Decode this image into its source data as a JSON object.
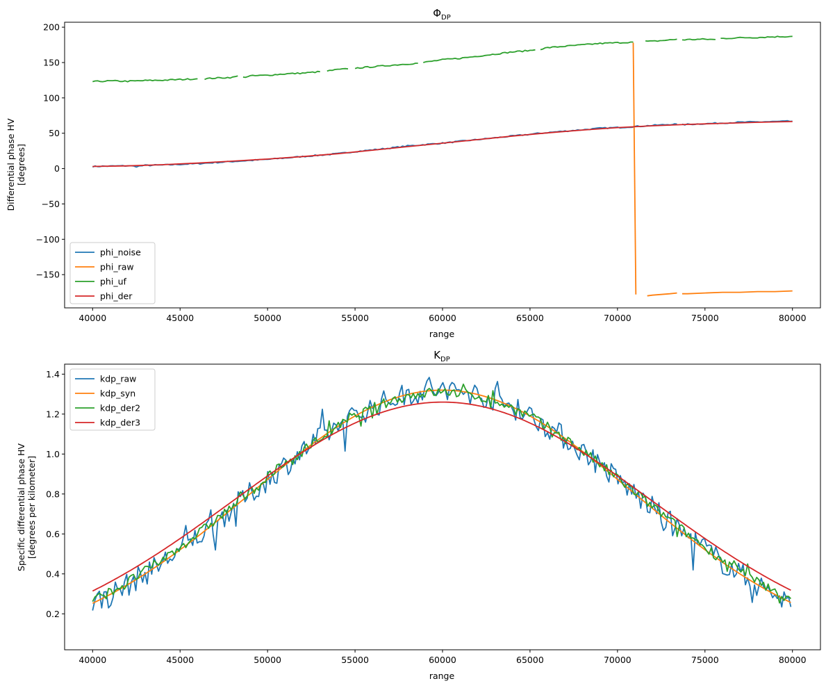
{
  "chart_data": [
    {
      "type": "line",
      "title": "Φ",
      "title_subscript": "DP",
      "xlabel": "range",
      "ylabel": [
        "Differential phase HV",
        "[degrees]"
      ],
      "xlim": [
        38400,
        81600
      ],
      "ylim": [
        -197,
        207
      ],
      "xticks": [
        40000,
        45000,
        50000,
        55000,
        60000,
        65000,
        70000,
        75000,
        80000
      ],
      "yticks": [
        -150,
        -100,
        -50,
        0,
        50,
        100,
        150,
        200
      ],
      "legend_position": "lower-left",
      "grid": false,
      "series": [
        {
          "name": "phi_noise",
          "color": "#1f77b4",
          "points": [
            [
              40000,
              3
            ],
            [
              41000,
              3.5
            ],
            [
              42000,
              4
            ],
            [
              42500,
              3
            ],
            [
              43000,
              4.5
            ],
            [
              44000,
              5
            ],
            [
              45000,
              6
            ],
            [
              46000,
              7
            ],
            [
              47000,
              8.5
            ],
            [
              48000,
              10
            ],
            [
              49000,
              11.5
            ],
            [
              50000,
              13
            ],
            [
              51000,
              15
            ],
            [
              52000,
              17
            ],
            [
              53000,
              19
            ],
            [
              54000,
              21
            ],
            [
              55000,
              24
            ],
            [
              56000,
              26.5
            ],
            [
              57000,
              29
            ],
            [
              58000,
              32
            ],
            [
              59000,
              34
            ],
            [
              60000,
              36
            ],
            [
              61000,
              38.5
            ],
            [
              62000,
              41
            ],
            [
              63000,
              43.5
            ],
            [
              64000,
              46
            ],
            [
              65000,
              48.5
            ],
            [
              66000,
              51
            ],
            [
              67000,
              53
            ],
            [
              68000,
              55
            ],
            [
              69000,
              57
            ],
            [
              70000,
              58
            ],
            [
              71000,
              59.5
            ],
            [
              72000,
              61
            ],
            [
              73000,
              62.5
            ],
            [
              73400,
              63
            ]
          ],
          "points_b": [
            [
              73700,
              62
            ],
            [
              74000,
              62.5
            ],
            [
              75000,
              63.5
            ],
            [
              76000,
              64.5
            ],
            [
              77000,
              65.5
            ],
            [
              78000,
              66
            ],
            [
              79000,
              66.5
            ],
            [
              80000,
              67
            ]
          ]
        },
        {
          "name": "phi_raw",
          "color": "#ff7f0e",
          "points": [
            [
              70900,
              178
            ],
            [
              71050,
              -178
            ]
          ],
          "points_b": [
            [
              71700,
              -180
            ],
            [
              72000,
              -179
            ],
            [
              73000,
              -177
            ],
            [
              73400,
              -176
            ]
          ],
          "points_c": [
            [
              73700,
              -177
            ],
            [
              74000,
              -177
            ],
            [
              75000,
              -176
            ],
            [
              76000,
              -175
            ],
            [
              77000,
              -175
            ],
            [
              78000,
              -174
            ],
            [
              79000,
              -174
            ],
            [
              80000,
              -173
            ]
          ]
        },
        {
          "name": "phi_uf",
          "color": "#2ca02c",
          "segments": [
            [
              [
                40000,
                123
              ],
              [
                41000,
                124
              ],
              [
                42000,
                123.5
              ],
              [
                43000,
                124.5
              ],
              [
                44000,
                125
              ],
              [
                45000,
                126
              ],
              [
                46000,
                127
              ]
            ],
            [
              [
                46400,
                127
              ],
              [
                47000,
                128
              ],
              [
                48000,
                129
              ],
              [
                48300,
                131
              ]
            ],
            [
              [
                48600,
                129
              ],
              [
                49000,
                131
              ],
              [
                50000,
                132
              ],
              [
                51000,
                134
              ],
              [
                52000,
                135
              ],
              [
                53000,
                137
              ]
            ],
            [
              [
                53400,
                138
              ],
              [
                54000,
                140
              ],
              [
                54600,
                141
              ]
            ],
            [
              [
                55000,
                142
              ],
              [
                56000,
                144
              ],
              [
                57000,
                146
              ],
              [
                58000,
                148
              ],
              [
                58600,
                149
              ]
            ],
            [
              [
                58900,
                150
              ],
              [
                60000,
                154
              ],
              [
                61000,
                156
              ],
              [
                62000,
                159
              ],
              [
                63000,
                162
              ],
              [
                64000,
                165
              ],
              [
                65000,
                167
              ],
              [
                65300,
                168
              ]
            ],
            [
              [
                65600,
                169
              ],
              [
                66000,
                171
              ],
              [
                67000,
                173
              ],
              [
                68000,
                175
              ],
              [
                69000,
                177
              ],
              [
                70000,
                178
              ],
              [
                70900,
                179
              ]
            ],
            [
              [
                71600,
                180
              ],
              [
                72000,
                180
              ],
              [
                73000,
                182
              ],
              [
                73400,
                183
              ]
            ],
            [
              [
                73700,
                182
              ],
              [
                74000,
                182.5
              ],
              [
                75000,
                183
              ],
              [
                75600,
                182.5
              ]
            ],
            [
              [
                75900,
                184
              ],
              [
                77000,
                185
              ],
              [
                78000,
                185.5
              ],
              [
                79000,
                186.5
              ],
              [
                80000,
                187
              ]
            ]
          ]
        },
        {
          "name": "phi_der",
          "color": "#d62728",
          "points": [
            [
              40000,
              3
            ],
            [
              42000,
              3.8
            ],
            [
              44000,
              5.5
            ],
            [
              46000,
              7.8
            ],
            [
              48000,
              10.5
            ],
            [
              50000,
              13.5
            ],
            [
              52000,
              17
            ],
            [
              54000,
              21
            ],
            [
              56000,
              26
            ],
            [
              58000,
              31
            ],
            [
              60000,
              36
            ],
            [
              62000,
              41
            ],
            [
              64000,
              46
            ],
            [
              66000,
              50.5
            ],
            [
              68000,
              54.5
            ],
            [
              70000,
              58
            ],
            [
              72000,
              60.5
            ],
            [
              74000,
              62.5
            ],
            [
              76000,
              64
            ],
            [
              78000,
              65.5
            ],
            [
              80000,
              66.5
            ]
          ]
        }
      ]
    },
    {
      "type": "line",
      "title": "K",
      "title_subscript": "DP",
      "xlabel": "range",
      "ylabel": [
        "Specific differential phase HV",
        "[degrees per kilometer]"
      ],
      "xlim": [
        38400,
        81600
      ],
      "ylim": [
        0.02,
        1.45
      ],
      "xticks": [
        40000,
        45000,
        50000,
        55000,
        60000,
        65000,
        70000,
        75000,
        80000
      ],
      "yticks": [
        0.2,
        0.4,
        0.6,
        0.8,
        1.0,
        1.2,
        1.4
      ],
      "legend_position": "upper-left",
      "grid": false,
      "series": [
        {
          "name": "kdp_raw",
          "color": "#1f77b4",
          "model": "gauss",
          "mu": 60000,
          "sigma": 11000,
          "amp": 1.32,
          "noise": 0.06
        },
        {
          "name": "kdp_syn",
          "color": "#ff7f0e",
          "model": "gauss",
          "mu": 60000,
          "sigma": 11000,
          "amp": 1.32,
          "noise": 0
        },
        {
          "name": "kdp_der2",
          "color": "#2ca02c",
          "model": "gauss",
          "mu": 60000,
          "sigma": 11200,
          "amp": 1.31,
          "noise": 0.025
        },
        {
          "name": "kdp_der3",
          "color": "#d62728",
          "model": "gauss",
          "mu": 60000,
          "sigma": 12000,
          "amp": 1.26,
          "noise": 0
        }
      ]
    }
  ]
}
